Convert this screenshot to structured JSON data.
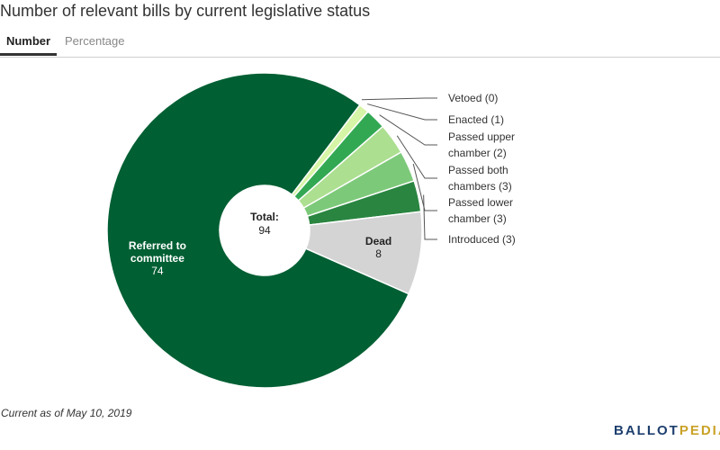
{
  "title": "Number of relevant bills by current legislative status",
  "tabs": [
    {
      "label": "Number",
      "active": true
    },
    {
      "label": "Percentage",
      "active": false
    }
  ],
  "footnote": "Current as of May 10, 2019",
  "logo": {
    "text": "BALLOTPEDIA",
    "color_dark": "#1d3f6e",
    "color_light": "#c9a227"
  },
  "chart_data": {
    "type": "pie",
    "donut": true,
    "center_label": "Total:",
    "center_value": "94",
    "total": 94,
    "slices": [
      {
        "label": "Vetoed",
        "value": 0,
        "color": "#eaf7d3",
        "external": true,
        "label_lines": [
          "Vetoed (0)"
        ]
      },
      {
        "label": "Enacted",
        "value": 1,
        "color": "#d6f5a6",
        "external": true,
        "label_lines": [
          "Enacted (1)"
        ]
      },
      {
        "label": "Passed upper chamber",
        "value": 2,
        "color": "#33a853",
        "external": true,
        "label_lines": [
          "Passed upper",
          "chamber (2)"
        ]
      },
      {
        "label": "Passed both chambers",
        "value": 3,
        "color": "#acdf90",
        "external": true,
        "label_lines": [
          "Passed both",
          "chambers (3)"
        ]
      },
      {
        "label": "Passed lower chamber",
        "value": 3,
        "color": "#7dc97a",
        "external": true,
        "label_lines": [
          "Passed lower",
          "chamber (3)"
        ]
      },
      {
        "label": "Introduced",
        "value": 3,
        "color": "#2a8540",
        "external": true,
        "label_lines": [
          "Introduced (3)"
        ]
      },
      {
        "label": "Dead",
        "value": 8,
        "color": "#d4d4d4",
        "external": false,
        "label_lines": [
          "Dead"
        ],
        "value_text": "8",
        "text_color": "#222222"
      },
      {
        "label": "Referred to committee",
        "value": 74,
        "color": "#005f33",
        "external": false,
        "label_lines": [
          "Referred to",
          "committee"
        ],
        "value_text": "74",
        "text_color": "#ffffff"
      }
    ]
  }
}
